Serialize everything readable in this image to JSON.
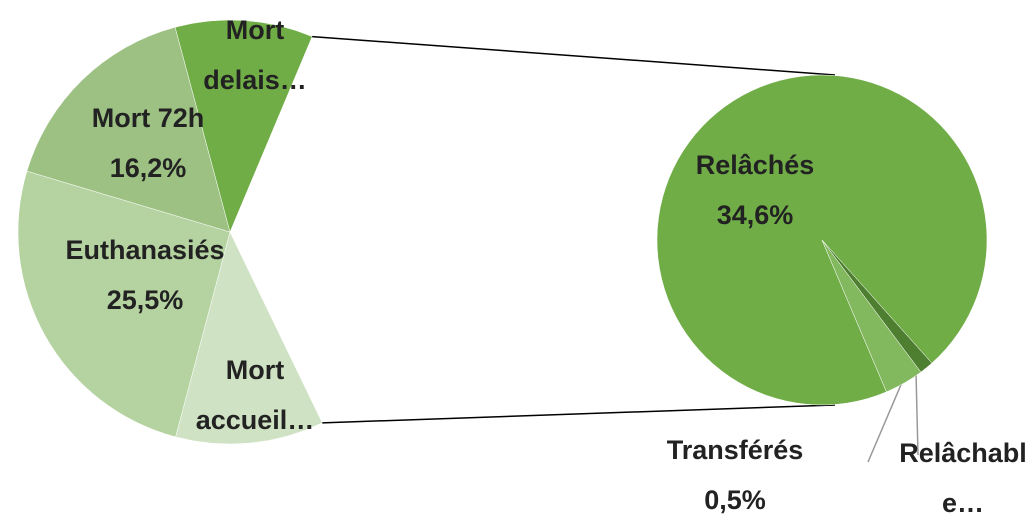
{
  "chart_data": {
    "type": "pie_of_pie",
    "main": {
      "categories": [
        "Mort accueil…",
        "Euthanasiés",
        "Mort 72h",
        "Mort delais…"
      ],
      "values": [
        11.3,
        25.5,
        16.2,
        10.5
      ],
      "value_labels": [
        null,
        "25,5%",
        "16,2%",
        null
      ],
      "colors": [
        "#cfe2c3",
        "#b5d3a0",
        "#9dc183",
        "#70ad47"
      ]
    },
    "secondary": {
      "categories": [
        "Relâchés",
        "Transférés",
        "Relâchable…"
      ],
      "values": [
        34.6,
        0.5,
        1.4
      ],
      "value_labels": [
        "34,6%",
        "0,5%",
        null
      ],
      "colors": [
        "#70ad47",
        "#4e7f31",
        "#82b85e"
      ]
    }
  }
}
